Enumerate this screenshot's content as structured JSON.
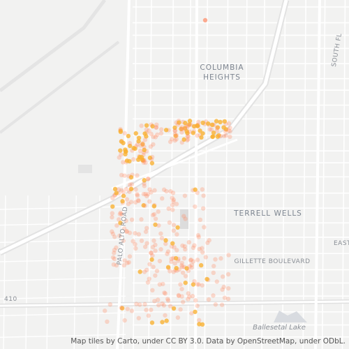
{
  "map": {
    "labels": {
      "neighborhood_1_line_1": "COLUMBIA",
      "neighborhood_1_line_2": "HEIGHTS",
      "neighborhood_2": "TERRELL WELLS",
      "street_1": "GILLETTE BOULEVARD",
      "street_2": "PALO ALTO ROAD",
      "street_3": "SOUTH FL",
      "street_4": "EAST",
      "highway": "410",
      "lake": "Ballesetal Lake"
    },
    "attribution": "Map tiles by Carto, under CC BY 3.0. Data by OpenStreetMap, under ODbL."
  }
}
